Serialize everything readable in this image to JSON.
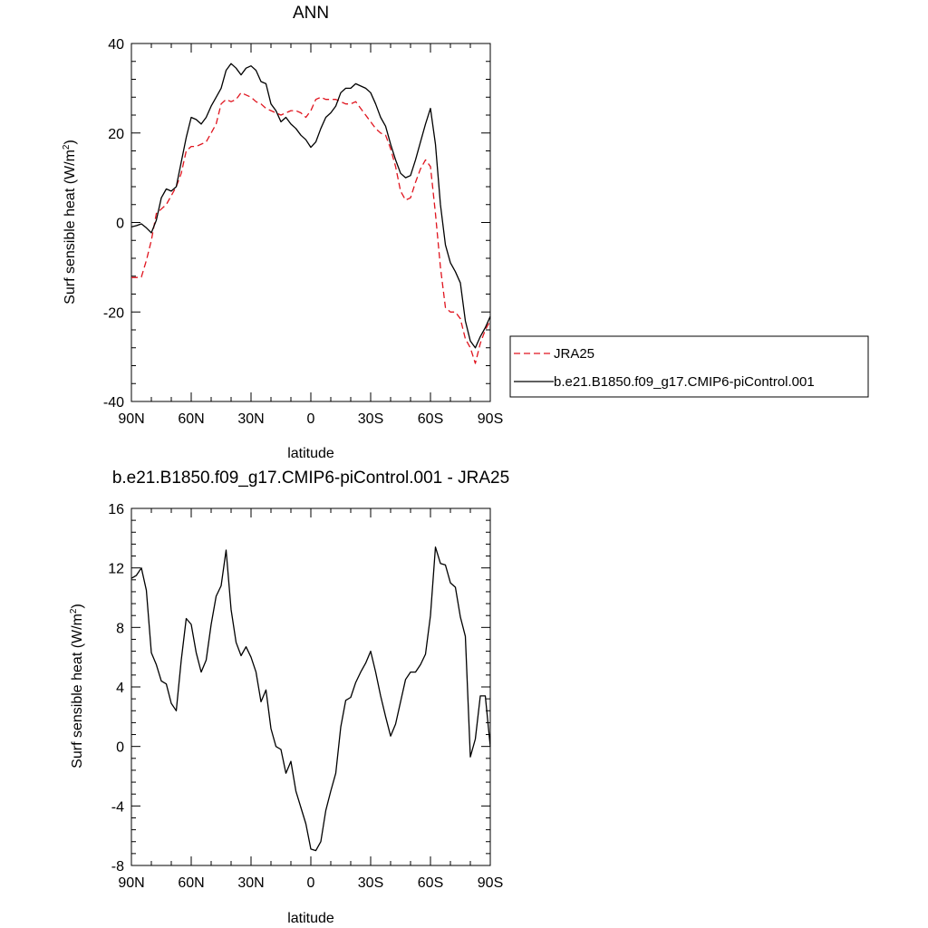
{
  "chart_data": [
    {
      "type": "line",
      "title": "ANN",
      "xlabel": "latitude",
      "ylabel": "Surf sensible heat (W/m",
      "ylabel_sup": "2",
      "ylabel_end": ")",
      "xlim": [
        -90,
        90
      ],
      "ylim": [
        -40,
        40
      ],
      "xticks": [
        -90,
        -60,
        -30,
        0,
        30,
        60,
        90
      ],
      "xtick_labels": [
        "90N",
        "60N",
        "30N",
        "0",
        "30S",
        "60S",
        "90S"
      ],
      "yticks": [
        -40,
        -20,
        0,
        20,
        40
      ],
      "ytick_labels": [
        "-40",
        "-20",
        "0",
        "20",
        "40"
      ],
      "legend_position": "right",
      "series": [
        {
          "name": "JRA25",
          "color": "#e0141e",
          "dash": "dashed",
          "x": [
            -90,
            -87.5,
            -85,
            -82.5,
            -80,
            -77.5,
            -75,
            -72.5,
            -70,
            -67.5,
            -65,
            -62.5,
            -60,
            -57.5,
            -55,
            -52.5,
            -50,
            -47.5,
            -45,
            -42.5,
            -40,
            -37.5,
            -35,
            -32.5,
            -30,
            -27.5,
            -25,
            -22.5,
            -20,
            -17.5,
            -15,
            -12.5,
            -10,
            -7.5,
            -5,
            -2.5,
            0,
            2.5,
            5,
            7.5,
            10,
            12.5,
            15,
            17.5,
            20,
            22.5,
            25,
            27.5,
            30,
            32.5,
            35,
            37.5,
            40,
            42.5,
            45,
            47.5,
            50,
            52.5,
            55,
            57.5,
            60,
            62.5,
            65,
            67.5,
            70,
            72.5,
            75,
            77.5,
            80,
            82.5,
            85,
            87.5,
            90
          ],
          "y": [
            -12.3,
            -12.3,
            -12.2,
            -8.5,
            -4.0,
            2.0,
            3.0,
            4.0,
            6.0,
            8.0,
            11.0,
            16.0,
            17.0,
            17.0,
            17.5,
            18.0,
            20.0,
            22.0,
            26.5,
            27.5,
            27.0,
            27.5,
            29.0,
            28.5,
            28.0,
            27.0,
            26.5,
            25.5,
            25.0,
            24.5,
            24.0,
            24.5,
            25.0,
            25.0,
            24.5,
            23.5,
            25.0,
            27.5,
            28.0,
            27.5,
            27.5,
            27.5,
            27.0,
            26.5,
            26.5,
            27.0,
            25.5,
            24.0,
            22.5,
            21.0,
            20.0,
            19.5,
            16.5,
            12.5,
            7.0,
            5.0,
            5.5,
            9.0,
            12.0,
            14.0,
            12.5,
            2.0,
            -10.0,
            -19.0,
            -20.0,
            -20.0,
            -21.5,
            -26.0,
            -28.0,
            -31.5,
            -27.0,
            -24.0,
            -22.0
          ]
        },
        {
          "name": "b.e21.B1850.f09_g17.CMIP6-piControl.001",
          "color": "#000000",
          "dash": "solid",
          "x": [
            -90,
            -87.5,
            -85,
            -82.5,
            -80,
            -77.5,
            -75,
            -72.5,
            -70,
            -67.5,
            -65,
            -62.5,
            -60,
            -57.5,
            -55,
            -52.5,
            -50,
            -47.5,
            -45,
            -42.5,
            -40,
            -37.5,
            -35,
            -32.5,
            -30,
            -27.5,
            -25,
            -22.5,
            -20,
            -17.5,
            -15,
            -12.5,
            -10,
            -7.5,
            -5,
            -2.5,
            0,
            2.5,
            5,
            7.5,
            10,
            12.5,
            15,
            17.5,
            20,
            22.5,
            25,
            27.5,
            30,
            32.5,
            35,
            37.5,
            40,
            42.5,
            45,
            47.5,
            50,
            52.5,
            55,
            57.5,
            60,
            62.5,
            65,
            67.5,
            70,
            72.5,
            75,
            77.5,
            80,
            82.5,
            85,
            87.5,
            90
          ],
          "y": [
            -1.0,
            -0.7,
            -0.3,
            -1.2,
            -2.3,
            0.5,
            5.5,
            7.5,
            7.0,
            8.0,
            13.5,
            19.0,
            23.5,
            23.0,
            22.0,
            23.5,
            26.0,
            28.0,
            30.0,
            34.0,
            35.5,
            34.5,
            33.0,
            34.5,
            35.0,
            34.0,
            31.5,
            31.0,
            26.5,
            25.0,
            22.5,
            23.5,
            22.0,
            21.0,
            19.5,
            18.5,
            16.8,
            18.0,
            21.0,
            23.5,
            24.5,
            26.0,
            29.0,
            30.0,
            30.0,
            31.0,
            30.5,
            30.0,
            29.0,
            26.5,
            23.5,
            21.5,
            17.5,
            14.0,
            11.0,
            10.0,
            10.5,
            14.0,
            18.0,
            22.0,
            25.5,
            17.5,
            4.0,
            -5.0,
            -9.0,
            -11.0,
            -13.5,
            -22.0,
            -26.5,
            -28.0,
            -25.5,
            -23.5,
            -21.0
          ]
        }
      ]
    },
    {
      "type": "line",
      "title": "b.e21.B1850.f09_g17.CMIP6-piControl.001 - JRA25",
      "xlabel": "latitude",
      "ylabel": "Surf sensible heat (W/m",
      "ylabel_sup": "2",
      "ylabel_end": ")",
      "xlim": [
        -90,
        90
      ],
      "ylim": [
        -8,
        16
      ],
      "xticks": [
        -90,
        -60,
        -30,
        0,
        30,
        60,
        90
      ],
      "xtick_labels": [
        "90N",
        "60N",
        "30N",
        "0",
        "30S",
        "60S",
        "90S"
      ],
      "yticks": [
        -8,
        -4,
        0,
        4,
        8,
        12,
        16
      ],
      "ytick_labels": [
        "-8",
        "-4",
        "0",
        "4",
        "8",
        "12",
        "16"
      ],
      "series": [
        {
          "color": "#000000",
          "dash": "solid",
          "x": [
            -90,
            -87.5,
            -85,
            -82.5,
            -80,
            -77.5,
            -75,
            -72.5,
            -70,
            -67.5,
            -65,
            -62.5,
            -60,
            -57.5,
            -55,
            -52.5,
            -50,
            -47.5,
            -45,
            -42.5,
            -40,
            -37.5,
            -35,
            -32.5,
            -30,
            -27.5,
            -25,
            -22.5,
            -20,
            -17.5,
            -15,
            -12.5,
            -10,
            -7.5,
            -5,
            -2.5,
            0,
            2.5,
            5,
            7.5,
            10,
            12.5,
            15,
            17.5,
            20,
            22.5,
            25,
            27.5,
            30,
            32.5,
            35,
            37.5,
            40,
            42.5,
            45,
            47.5,
            50,
            52.5,
            55,
            57.5,
            60,
            62.5,
            65,
            67.5,
            70,
            72.5,
            75,
            77.5,
            80,
            82.5,
            85,
            87.5,
            90
          ],
          "y": [
            11.3,
            11.5,
            12.0,
            10.5,
            6.3,
            5.5,
            4.4,
            4.2,
            2.9,
            2.4,
            5.8,
            8.6,
            8.2,
            6.3,
            5.0,
            5.8,
            8.2,
            10.1,
            10.8,
            13.2,
            9.2,
            7.0,
            6.1,
            6.7,
            6.0,
            5.0,
            3.0,
            3.8,
            1.2,
            0.0,
            -0.2,
            -1.8,
            -1.0,
            -3.0,
            -4.1,
            -5.2,
            -6.9,
            -7.0,
            -6.4,
            -4.3,
            -3.0,
            -1.8,
            1.3,
            3.1,
            3.3,
            4.3,
            5.0,
            5.6,
            6.4,
            5.0,
            3.4,
            2.0,
            0.7,
            1.5,
            3.0,
            4.5,
            5.0,
            5.0,
            5.5,
            6.2,
            8.8,
            13.4,
            12.3,
            12.2,
            11.0,
            10.7,
            8.7,
            7.4,
            -0.7,
            0.5,
            3.4,
            3.4,
            0.0
          ]
        }
      ]
    }
  ]
}
